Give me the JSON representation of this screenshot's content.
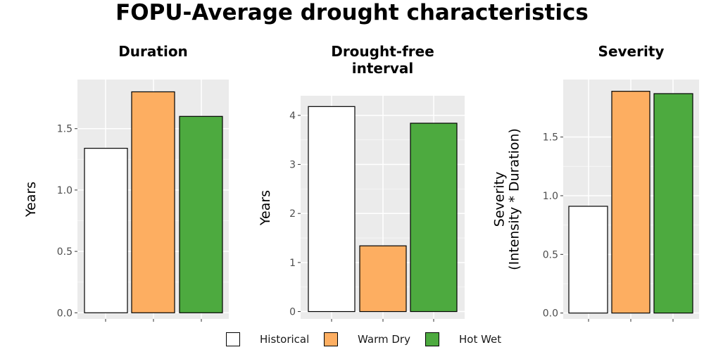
{
  "title": "FOPU-Average drought characteristics",
  "legend": {
    "items": [
      {
        "label": "Historical",
        "color": "#ffffff"
      },
      {
        "label": "Warm Dry",
        "color": "#fdae61"
      },
      {
        "label": "Hot Wet",
        "color": "#4daa3f"
      }
    ]
  },
  "chart_data": [
    {
      "type": "bar",
      "title": "Duration",
      "ylabel": "Years",
      "categories": [
        "Historical",
        "Warm Dry",
        "Hot Wet"
      ],
      "values": [
        1.34,
        1.8,
        1.6
      ],
      "ylim": [
        -0.05,
        1.9
      ],
      "yticks": [
        0.0,
        0.5,
        1.0,
        1.5
      ],
      "ytick_labels": [
        "0.0",
        "0.5",
        "1.0",
        "1.5"
      ],
      "grid": true,
      "legend": "bottom"
    },
    {
      "type": "bar",
      "title": "Drought-free interval",
      "ylabel": "Years",
      "categories": [
        "Historical",
        "Warm Dry",
        "Hot Wet"
      ],
      "values": [
        4.18,
        1.34,
        3.84
      ],
      "ylim": [
        -0.15,
        4.4
      ],
      "yticks": [
        0,
        1,
        2,
        3,
        4
      ],
      "ytick_labels": [
        "0",
        "1",
        "2",
        "3",
        "4"
      ],
      "grid": true,
      "legend": "bottom"
    },
    {
      "type": "bar",
      "title": "Severity",
      "ylabel": "Severity (Intensity * Duration)",
      "categories": [
        "Historical",
        "Warm Dry",
        "Hot Wet"
      ],
      "values": [
        0.91,
        1.89,
        1.87
      ],
      "ylim": [
        -0.05,
        1.99
      ],
      "yticks": [
        0.0,
        0.5,
        1.0,
        1.5
      ],
      "ytick_labels": [
        "0.0",
        "0.5",
        "1.0",
        "1.5"
      ],
      "grid": true,
      "legend": "bottom"
    }
  ]
}
